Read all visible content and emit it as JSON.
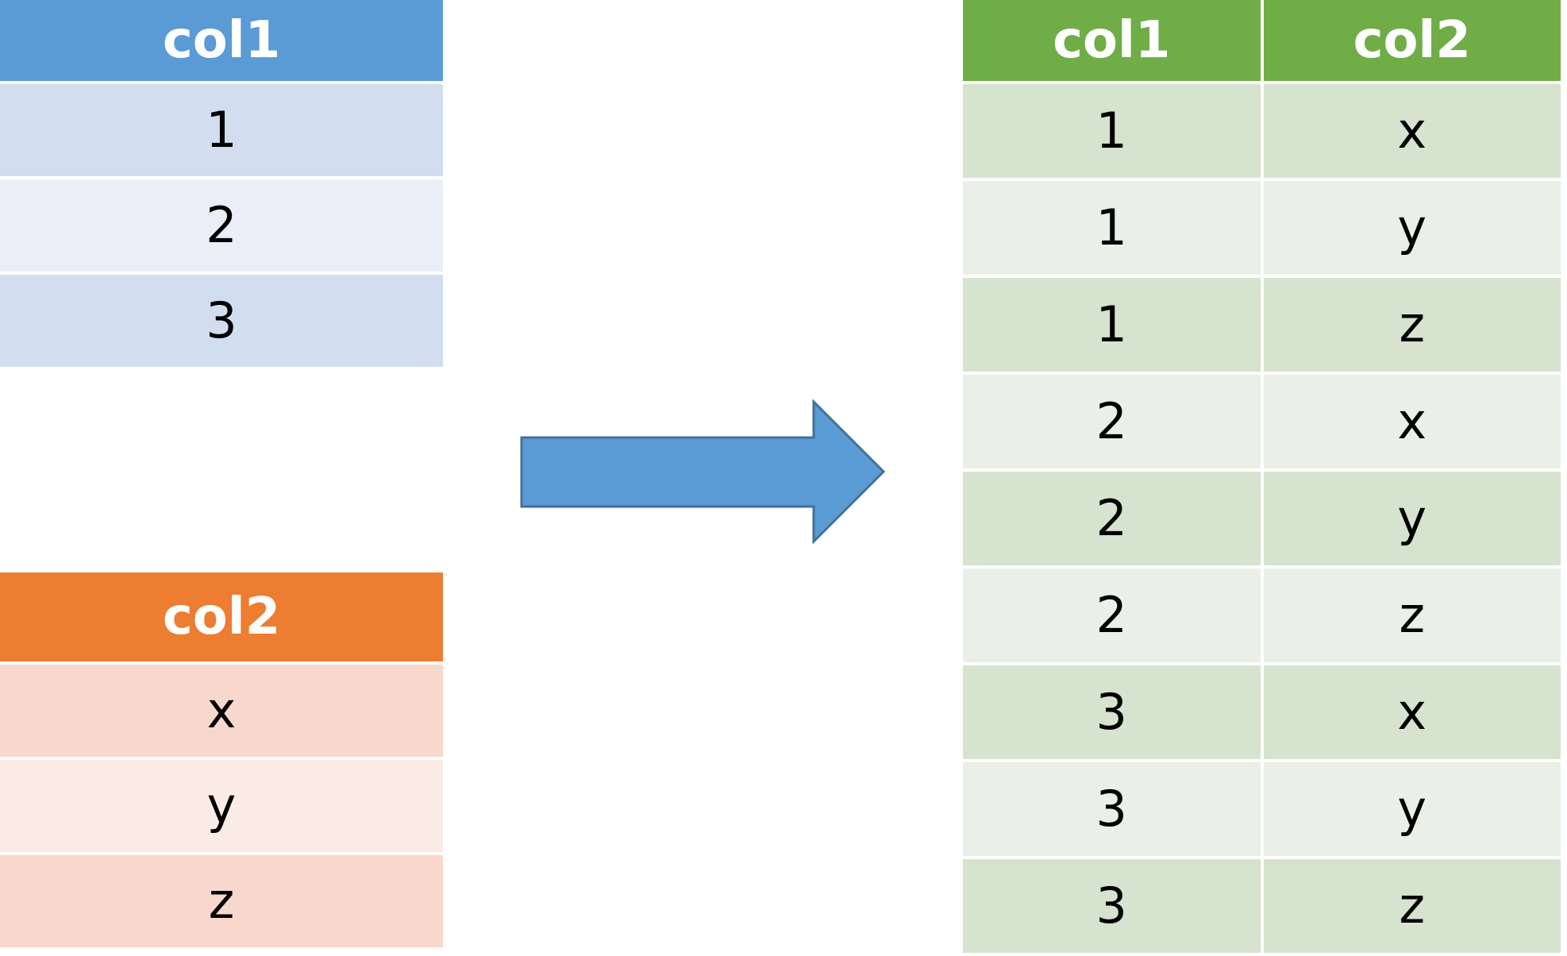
{
  "colors": {
    "blue_header": "#5B9BD5",
    "blue_row_dark": "#D2DEEF",
    "blue_row_light": "#EAEFF7",
    "orange_header": "#ED7D31",
    "orange_row_dark": "#F8D7CC",
    "orange_row_light": "#FBEBE6",
    "green_header": "#70AD47",
    "green_row_dark": "#D5E3CF",
    "green_row_light": "#EAF0E8",
    "arrow_fill": "#5B9BD5",
    "arrow_stroke": "#41719C"
  },
  "table_col1": {
    "header": "col1",
    "rows": [
      "1",
      "2",
      "3"
    ]
  },
  "table_col2": {
    "header": "col2",
    "rows": [
      "x",
      "y",
      "z"
    ]
  },
  "arrow": {
    "icon": "right-arrow-icon"
  },
  "table_result": {
    "headers": [
      "col1",
      "col2"
    ],
    "rows": [
      [
        "1",
        "x"
      ],
      [
        "1",
        "y"
      ],
      [
        "1",
        "z"
      ],
      [
        "2",
        "x"
      ],
      [
        "2",
        "y"
      ],
      [
        "2",
        "z"
      ],
      [
        "3",
        "x"
      ],
      [
        "3",
        "y"
      ],
      [
        "3",
        "z"
      ]
    ]
  }
}
